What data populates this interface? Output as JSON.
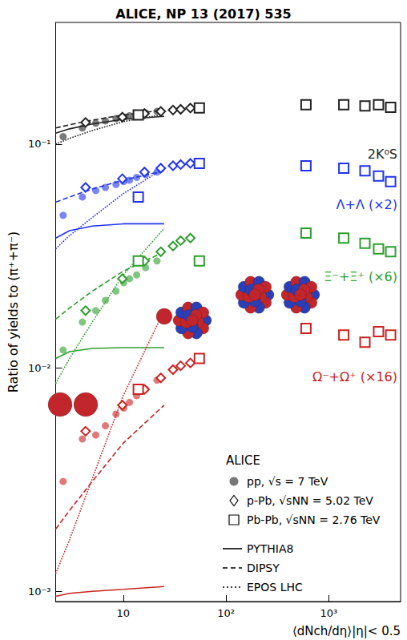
{
  "chart_data": {
    "type": "scatter",
    "title": "ALICE, NP 13 (2017) 535",
    "x_label": "⟨dNch/dη⟩|η|< 0.5",
    "y_label": "Ratio of yields to (π⁺+π⁻)",
    "log": true,
    "grid": false,
    "legend": "lower right",
    "legend_title": "ALICE",
    "xlim": [
      2.2,
      5000
    ],
    "ylim": [
      0.0009,
      0.35
    ],
    "xticks": [
      10,
      {
        "value": 100,
        "label": "10²"
      },
      {
        "value": 1000,
        "label": "10³"
      }
    ],
    "yticks": [
      {
        "value": 0.001,
        "label": "10⁻³"
      },
      {
        "value": 0.01,
        "label": "10⁻²"
      },
      {
        "value": 0.1,
        "label": "10⁻¹"
      }
    ],
    "systems": [
      {
        "name": "pp, √s = 7 TeV",
        "marker": "circle",
        "x": [
          2.6,
          4.0,
          5.4,
          6.7,
          8.5,
          10.1,
          11.5,
          13.5,
          16.5,
          21.3
        ]
      },
      {
        "name": "p-Pb, √sNN = 5.02 TeV",
        "marker": "diamond",
        "x": [
          4.3,
          9.8,
          16.1,
          23.2,
          30.5,
          36.2,
          45.0
        ]
      },
      {
        "name": "Pb-Pb, √sNN = 2.76 TeV",
        "marker": "square",
        "x": [
          14,
          55,
          600,
          1400,
          2250,
          3050,
          4000
        ]
      }
    ],
    "models": [
      {
        "name": "PYTHIA8",
        "line_style": "solid",
        "x": [
          2.2,
          3,
          5,
          10,
          25
        ]
      },
      {
        "name": "DIPSY",
        "line_style": "dashed",
        "x": [
          2.2,
          3,
          5,
          10,
          25
        ]
      },
      {
        "name": "EPOS LHC",
        "line_style": "dotted",
        "x": [
          2.2,
          3,
          5,
          10,
          25
        ]
      }
    ],
    "species": [
      {
        "name": "2K⁰S",
        "color": "#222222",
        "values": [
          [
            0.108,
            0.118,
            0.124,
            0.127,
            0.13,
            0.132,
            0.134,
            0.136,
            0.138,
            0.14
          ],
          [
            0.125,
            0.132,
            0.137,
            0.14,
            0.142,
            0.143,
            0.145
          ],
          [
            0.135,
            0.145,
            0.15,
            0.15,
            0.148,
            0.15,
            0.146
          ]
        ],
        "models": [
          [
            0.112,
            0.117,
            0.123,
            0.129,
            0.133
          ],
          [
            0.118,
            0.122,
            0.128,
            0.135,
            0.142
          ],
          [
            0.1,
            0.106,
            0.115,
            0.126,
            0.136
          ]
        ]
      },
      {
        "name": "Λ+Λ (×2)",
        "color": "#2233ee",
        "values": [
          [
            0.048,
            0.058,
            0.062,
            0.064,
            0.066,
            0.068,
            0.069,
            0.071,
            0.073,
            0.075
          ],
          [
            0.064,
            0.07,
            0.075,
            0.078,
            0.08,
            0.081,
            0.082
          ],
          [
            0.058,
            0.082,
            0.08,
            0.078,
            0.076,
            0.072,
            0.068
          ]
        ],
        "models": [
          [
            0.038,
            0.041,
            0.043,
            0.044,
            0.044
          ],
          [
            0.055,
            0.058,
            0.063,
            0.069,
            0.076
          ],
          [
            0.034,
            0.039,
            0.047,
            0.06,
            0.078
          ]
        ]
      },
      {
        "name": "Ξ⁻+Ξ⁺ (×6)",
        "color": "#2e9e2e",
        "values": [
          [
            0.012,
            0.016,
            0.018,
            0.02,
            0.022,
            0.024,
            0.025,
            0.026,
            0.028,
            0.03
          ],
          [
            0.018,
            0.025,
            0.03,
            0.033,
            0.035,
            0.037,
            0.038
          ],
          [
            0.03,
            0.03,
            0.04,
            0.038,
            0.036,
            0.034,
            0.033
          ]
        ],
        "models": [
          [
            0.011,
            0.0118,
            0.0122,
            0.0123,
            0.0123
          ],
          [
            0.0165,
            0.0185,
            0.022,
            0.027,
            0.033
          ],
          [
            0.0085,
            0.011,
            0.016,
            0.026,
            0.042
          ]
        ]
      },
      {
        "name": "Ω⁻+Ω⁺ (×16)",
        "color": "#cc2222",
        "values": [
          [
            0.0031,
            0.0048,
            0.005,
            0.0055,
            0.0062,
            0.0066,
            0.007,
            0.0075,
            0.008,
            0.0088
          ],
          [
            0.0052,
            0.0068,
            0.008,
            0.009,
            0.0098,
            0.0102,
            0.0105
          ],
          [
            0.008,
            0.011,
            0.015,
            0.014,
            0.013,
            0.0145,
            0.014
          ]
        ],
        "models": [
          [
            0.00095,
            0.00098,
            0.001,
            0.00102,
            0.00105
          ],
          [
            0.0019,
            0.0023,
            0.0031,
            0.0046,
            0.0068
          ],
          [
            0.0012,
            0.0017,
            0.0032,
            0.0075,
            0.018
          ]
        ]
      }
    ]
  }
}
